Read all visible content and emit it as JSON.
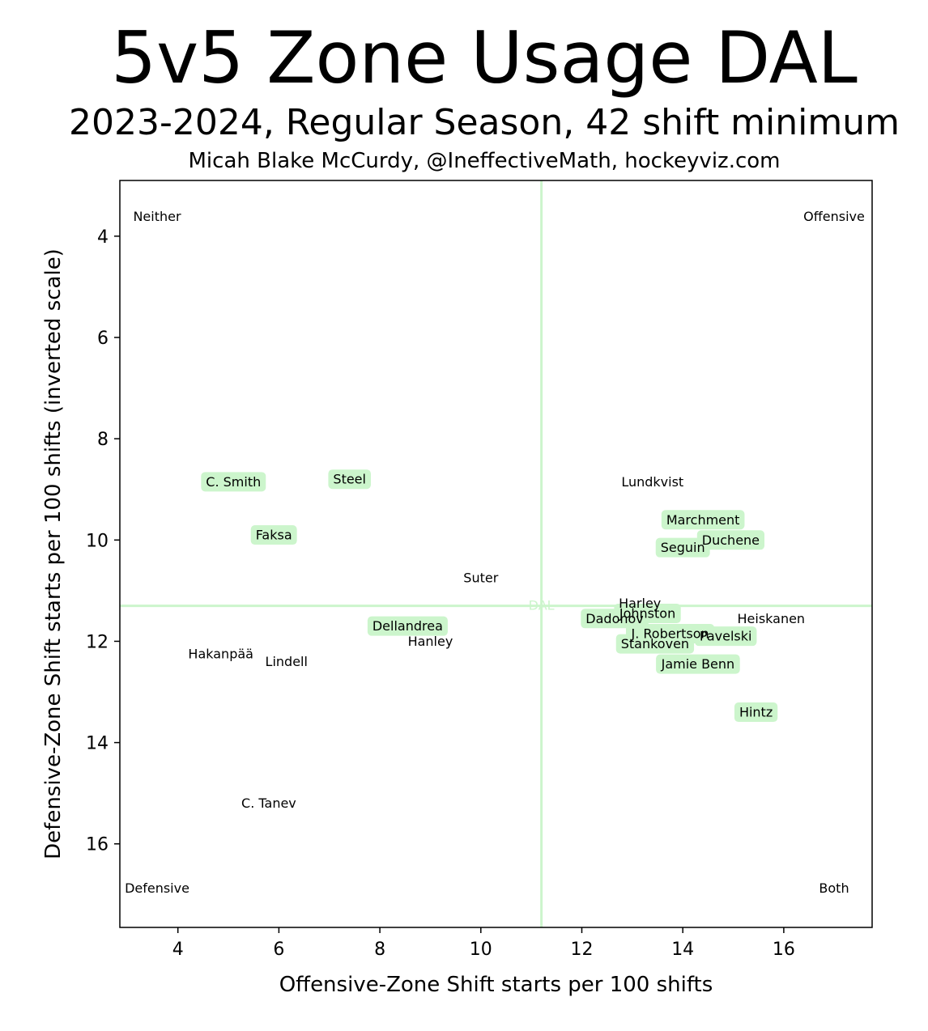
{
  "chart_data": {
    "type": "scatter",
    "title": "5v5 Zone Usage DAL",
    "subtitle": "2023-2024, Regular Season, 42 shift minimum",
    "credit": "Micah Blake McCurdy, @IneffectiveMath, hockeyviz.com",
    "xlabel": "Offensive-Zone Shift starts per 100 shifts",
    "ylabel": "Defensive-Zone Shift starts per 100 shifts (inverted scale)",
    "xlim": [
      2.85,
      17.75
    ],
    "ylim": [
      17.65,
      2.9
    ],
    "y_inverted": true,
    "x_ticks": [
      4,
      6,
      8,
      10,
      12,
      14,
      16
    ],
    "y_ticks": [
      4,
      6,
      8,
      10,
      12,
      14,
      16
    ],
    "grid": false,
    "highlight_color": "#ccf5cc",
    "team_reference": {
      "label": "DAL",
      "x": 11.2,
      "y": 11.3
    },
    "corner_labels": {
      "top_left": "Neither",
      "top_right": "Offensive",
      "bottom_left": "Defensive",
      "bottom_right": "Both"
    },
    "players": [
      {
        "name": "C. Smith",
        "x": 5.1,
        "y": 8.85,
        "highlight": true
      },
      {
        "name": "Steel",
        "x": 7.4,
        "y": 8.8,
        "highlight": true
      },
      {
        "name": "Faksa",
        "x": 5.9,
        "y": 9.9,
        "highlight": true
      },
      {
        "name": "Suter",
        "x": 10.0,
        "y": 10.75,
        "highlight": false
      },
      {
        "name": "Dellandrea",
        "x": 8.55,
        "y": 11.7,
        "highlight": true
      },
      {
        "name": "Hanley",
        "x": 9.0,
        "y": 12.0,
        "highlight": false
      },
      {
        "name": "Hakanpää",
        "x": 4.85,
        "y": 12.25,
        "highlight": false
      },
      {
        "name": "Lindell",
        "x": 6.15,
        "y": 12.4,
        "highlight": false
      },
      {
        "name": "C. Tanev",
        "x": 5.8,
        "y": 15.2,
        "highlight": false
      },
      {
        "name": "Lundkvist",
        "x": 13.4,
        "y": 8.85,
        "highlight": false
      },
      {
        "name": "Marchment",
        "x": 14.4,
        "y": 9.6,
        "highlight": true
      },
      {
        "name": "Duchene",
        "x": 14.95,
        "y": 10.0,
        "highlight": true
      },
      {
        "name": "Seguin",
        "x": 14.0,
        "y": 10.15,
        "highlight": true
      },
      {
        "name": "Harley",
        "x": 13.15,
        "y": 11.25,
        "highlight": false
      },
      {
        "name": "Johnston",
        "x": 13.3,
        "y": 11.45,
        "highlight": true
      },
      {
        "name": "Dadonov",
        "x": 12.65,
        "y": 11.55,
        "highlight": true
      },
      {
        "name": "Heiskanen",
        "x": 15.75,
        "y": 11.55,
        "highlight": false
      },
      {
        "name": "J. Robertson",
        "x": 13.75,
        "y": 11.85,
        "highlight": true
      },
      {
        "name": "Pavelski",
        "x": 14.85,
        "y": 11.9,
        "highlight": true
      },
      {
        "name": "Stankoven",
        "x": 13.45,
        "y": 12.05,
        "highlight": true
      },
      {
        "name": "Jamie Benn",
        "x": 14.3,
        "y": 12.45,
        "highlight": true
      },
      {
        "name": "Hintz",
        "x": 15.45,
        "y": 13.4,
        "highlight": true
      }
    ]
  }
}
